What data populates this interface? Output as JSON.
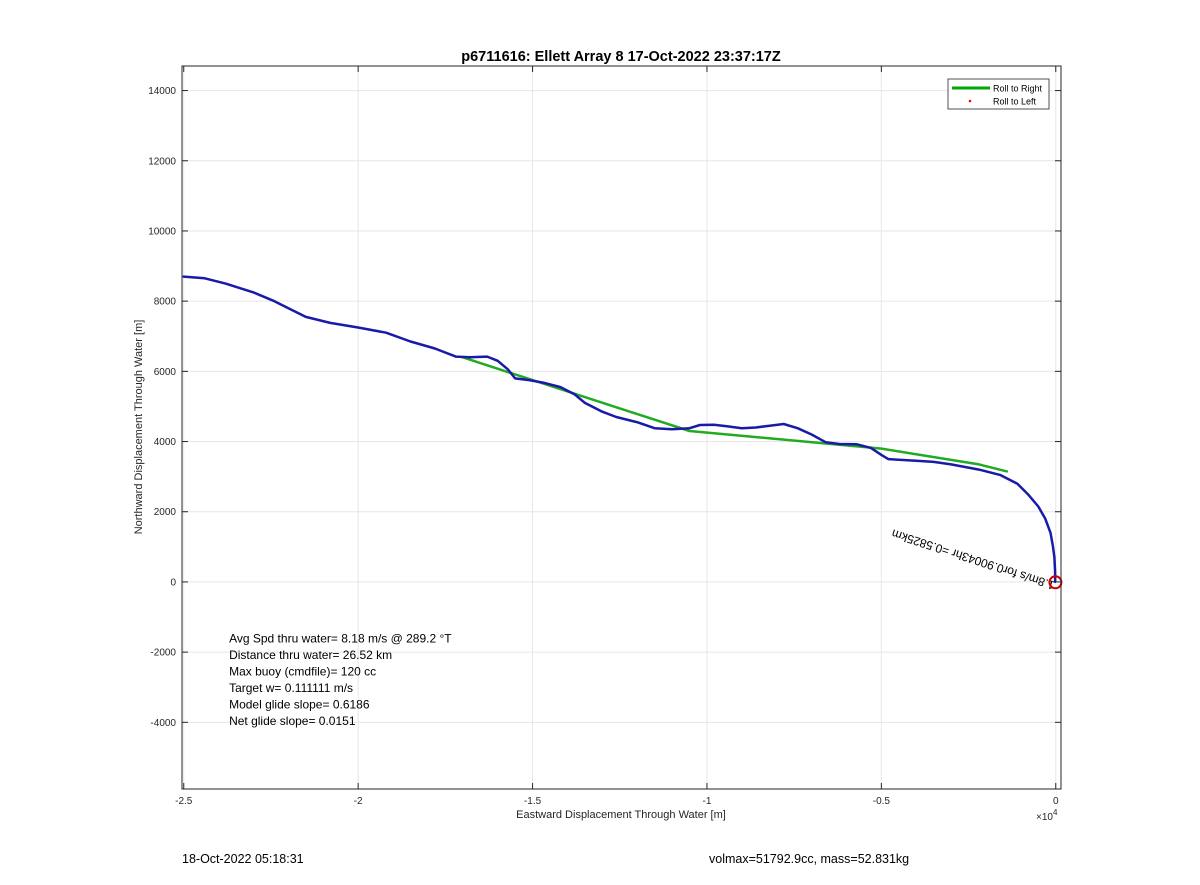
{
  "chart_data": {
    "type": "line",
    "title": "p6711616: Ellett Array 8 17-Oct-2022 23:37:17Z",
    "xlabel": "Eastward Displacement Through Water [m]",
    "ylabel": "Northward Displacement Through Water [m]",
    "x_exponent_label": "×10",
    "x_exponent_power": "4",
    "xlim": [
      -2.505,
      0.015
    ],
    "ylim": [
      -5900,
      14700
    ],
    "x_ticks": [
      -2.5,
      -2,
      -1.5,
      -1,
      -0.5,
      0
    ],
    "x_tick_labels": [
      "-2.5",
      "-2",
      "-1.5",
      "-1",
      "-0.5",
      "0"
    ],
    "y_ticks": [
      -4000,
      -2000,
      0,
      2000,
      4000,
      6000,
      8000,
      10000,
      12000,
      14000
    ],
    "y_tick_labels": [
      "-4000",
      "-2000",
      "0",
      "2000",
      "4000",
      "6000",
      "8000",
      "10000",
      "12000",
      "14000"
    ],
    "grid": true,
    "legend_position": "top-right",
    "legend": [
      {
        "label": "Roll to Right",
        "color": "#00aa00",
        "marker": "line"
      },
      {
        "label": "Roll to Left",
        "color": "#ff0000",
        "marker": "dot"
      }
    ],
    "series": [
      {
        "name": "Roll to Right",
        "color": "#22aa22",
        "x": [
          -1.7,
          -1.5,
          -1.05,
          -0.5,
          -0.22,
          -0.14
        ],
        "y": [
          6400,
          5750,
          4300,
          3800,
          3350,
          3150
        ]
      },
      {
        "color": "#1a1aaa",
        "x": [
          -2.5,
          -2.44,
          -2.38,
          -2.3,
          -2.24,
          -2.2,
          -2.15,
          -2.08,
          -2.0,
          -1.92,
          -1.85,
          -1.78,
          -1.72,
          -1.68,
          -1.63,
          -1.6,
          -1.57,
          -1.55,
          -1.51,
          -1.47,
          -1.42,
          -1.38,
          -1.35,
          -1.3,
          -1.26,
          -1.2,
          -1.15,
          -1.1,
          -1.05,
          -1.02,
          -0.98,
          -0.94,
          -0.9,
          -0.86,
          -0.82,
          -0.78,
          -0.74,
          -0.7,
          -0.66,
          -0.62,
          -0.57,
          -0.53,
          -0.5,
          -0.48,
          -0.45,
          -0.4,
          -0.35,
          -0.3,
          -0.22,
          -0.16,
          -0.11,
          -0.08,
          -0.05,
          -0.03,
          -0.015,
          -0.008,
          -0.004,
          -0.002,
          -0.0015
        ],
        "y": [
          8700,
          8650,
          8500,
          8250,
          8000,
          7800,
          7550,
          7380,
          7250,
          7100,
          6850,
          6650,
          6420,
          6400,
          6420,
          6300,
          6050,
          5800,
          5750,
          5680,
          5550,
          5350,
          5100,
          4850,
          4700,
          4550,
          4380,
          4350,
          4380,
          4470,
          4480,
          4430,
          4380,
          4400,
          4450,
          4500,
          4380,
          4200,
          3980,
          3930,
          3920,
          3820,
          3620,
          3500,
          3480,
          3450,
          3420,
          3350,
          3200,
          3050,
          2800,
          2500,
          2150,
          1800,
          1400,
          1000,
          700,
          300,
          0
        ]
      }
    ],
    "annotations": [
      {
        "text": "Avg Spd thru water=  8.18 m/s @ 289.2 °T",
        "x": -2.37,
        "y": -1720
      },
      {
        "text": "Distance thru water= 26.52 km",
        "x": -2.37,
        "y": -2190
      },
      {
        "text": "Max buoy (cmdfile)= 120 cc",
        "x": -2.37,
        "y": -2660
      },
      {
        "text": "Target w= 0.111111 m/s",
        "x": -2.37,
        "y": -3130
      },
      {
        "text": "Model glide slope= 0.6186",
        "x": -2.37,
        "y": -3600
      },
      {
        "text": "Net glide slope= 0.0151",
        "x": -2.37,
        "y": -4070
      }
    ],
    "rotated_annotation": {
      "text": "1.8m/s for0.90043hr =0.5825km",
      "anchor_x": -0.001,
      "anchor_y": -1,
      "rotation_deg": 198
    },
    "marker": {
      "shape": "circle",
      "color": "#cc0000",
      "x": -0.001,
      "y": -10
    }
  },
  "footer": {
    "date": "18-Oct-2022 05:18:31",
    "volmax_mass": "volmax=51792.9cc, mass=52.831kg"
  }
}
